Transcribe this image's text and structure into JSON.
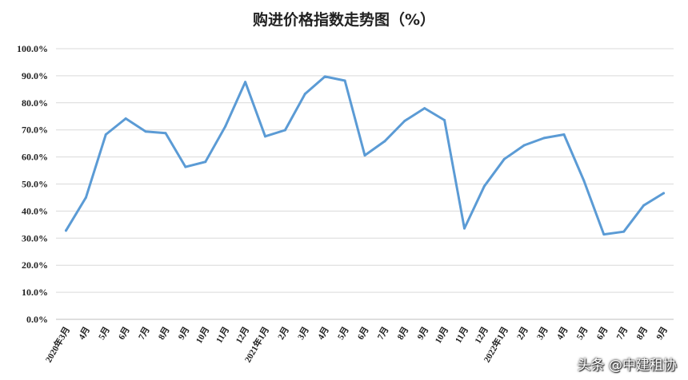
{
  "chart_data": {
    "type": "line",
    "title": "购进价格指数走势图（%）",
    "xlabel": "",
    "ylabel": "",
    "ylim": [
      0,
      100
    ],
    "yticks": [
      "0.0%",
      "10.0%",
      "20.0%",
      "30.0%",
      "40.0%",
      "50.0%",
      "60.0%",
      "70.0%",
      "80.0%",
      "90.0%",
      "100.0%"
    ],
    "grid": true,
    "legend": "none",
    "line_color": "#5b9bd5",
    "categories": [
      "2020年3月",
      "4月",
      "5月",
      "6月",
      "7月",
      "8月",
      "9月",
      "10月",
      "11月",
      "12月",
      "2021年1月",
      "2月",
      "3月",
      "4月",
      "5月",
      "6月",
      "7月",
      "8月",
      "9月",
      "10月",
      "11月",
      "12月",
      "2022年1月",
      "2月",
      "3月",
      "4月",
      "5月",
      "6月",
      "7月",
      "8月",
      "9月"
    ],
    "series": [
      {
        "values": [
          32.8,
          45.0,
          68.3,
          74.2,
          69.4,
          68.8,
          56.3,
          58.2,
          71.3,
          87.7,
          67.6,
          69.9,
          83.3,
          89.7,
          88.2,
          60.6,
          65.8,
          73.3,
          78.0,
          73.6,
          33.6,
          49.2,
          59.2,
          64.3,
          67.0,
          68.3,
          51.2,
          31.4,
          32.4,
          42.1,
          46.6
        ]
      }
    ]
  },
  "watermark": "头条 @中建租协"
}
